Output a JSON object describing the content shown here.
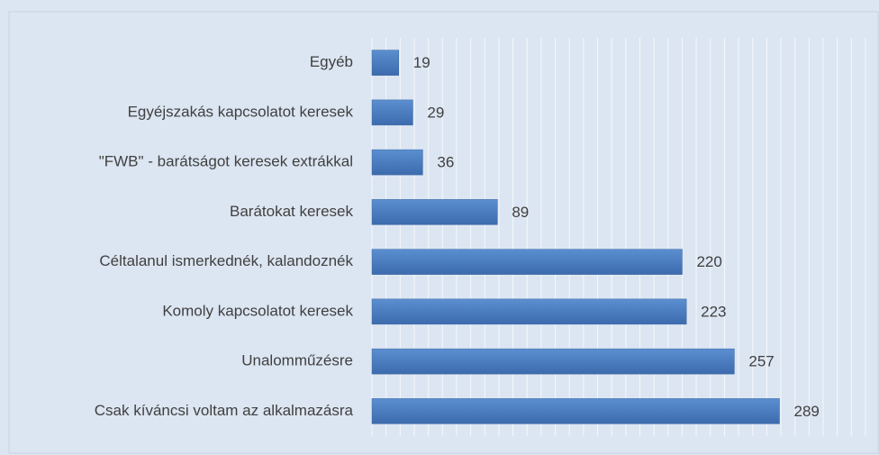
{
  "chart_data": {
    "type": "hbar",
    "categories": [
      "Egyéb",
      "Egyéjszakás kapcsolatot keresek",
      "\"FWB\" - barátságot keresek extrákkal",
      "Barátokat keresek",
      "Céltalanul ismerkednék, kalandoznék",
      "Komoly kapcsolatot keresek",
      "Unalomműzésre",
      "Csak kíváncsi voltam az alkalmazásra"
    ],
    "values": [
      19,
      29,
      36,
      89,
      220,
      223,
      257,
      289
    ],
    "color": "#4a7ebb",
    "xlim": [
      0,
      350
    ],
    "xticks": [
      0,
      10,
      20,
      30,
      40,
      50,
      60,
      70,
      80,
      90,
      100,
      110,
      120,
      130,
      140,
      150,
      160,
      170,
      180,
      190,
      200,
      210,
      220,
      230,
      240,
      250,
      260,
      270,
      280,
      290,
      300,
      310,
      320,
      330,
      340,
      350
    ],
    "grid": true
  }
}
